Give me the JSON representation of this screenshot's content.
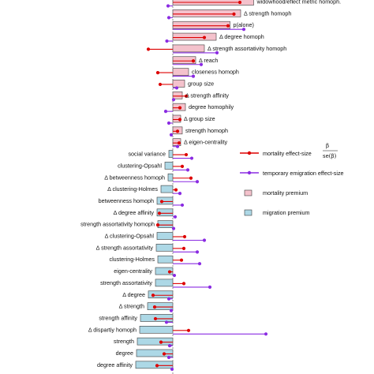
{
  "chart_data": {
    "type": "bar",
    "title": "",
    "xlabel": "",
    "ylabel": "",
    "xlim": [
      -0.1,
      0.26
    ],
    "grid": false,
    "legend_position": "right",
    "colors": {
      "mortality": "#dd0000",
      "emigration": "#8a2be2",
      "mortality_bar": "#f4c2cc",
      "migration_bar": "#add8e6",
      "bar_edge": "#3a3a3a",
      "zero_line": "#777777"
    },
    "legend": {
      "mortality_effect": "mortality effect-size",
      "beta": "β",
      "se_beta": "se(β)",
      "emigration_effect": "temporary emigration effect-size",
      "mortality_premium": "mortality premium",
      "migration_premium": "migration premium"
    },
    "rows": [
      {
        "label": "widowhood/eflect metric homoph.",
        "premium": 0.205,
        "mortality": 0.17,
        "emigration": -0.012
      },
      {
        "label": "Δ strength homoph",
        "premium": 0.172,
        "mortality": 0.155,
        "emigration": -0.01
      },
      {
        "label": "p(alone)",
        "premium": 0.145,
        "mortality": 0.14,
        "emigration": 0.18
      },
      {
        "label": "Δ degree homoph",
        "premium": 0.11,
        "mortality": 0.08,
        "emigration": -0.015
      },
      {
        "label": "Δ strength assortativity homoph",
        "premium": 0.08,
        "mortality": -0.062,
        "emigration": 0.112
      },
      {
        "label": "Δ reach",
        "premium": 0.058,
        "mortality": 0.052,
        "emigration": 0.072
      },
      {
        "label": "closeness homoph",
        "premium": 0.04,
        "mortality": -0.038,
        "emigration": 0.052
      },
      {
        "label": "group size",
        "premium": 0.03,
        "mortality": -0.032,
        "emigration": 0.01
      },
      {
        "label": "Δ strength affinity",
        "premium": 0.024,
        "mortality": 0.034,
        "emigration": 0.002
      },
      {
        "label": "degree homophily",
        "premium": 0.032,
        "mortality": 0.018,
        "emigration": -0.018
      },
      {
        "label": "Δ group size",
        "premium": 0.02,
        "mortality": 0.018,
        "emigration": -0.01
      },
      {
        "label": "strength homoph",
        "premium": 0.024,
        "mortality": 0.012,
        "emigration": -0.004
      },
      {
        "label": "Δ eigen-centrality",
        "premium": 0.02,
        "mortality": 0.016,
        "emigration": 0.012
      },
      {
        "label": "social variance",
        "premium": -0.01,
        "mortality": 0.034,
        "emigration": 0.048
      },
      {
        "label": "clustering-Opsahl",
        "premium": -0.02,
        "mortality": 0.024,
        "emigration": 0.038
      },
      {
        "label": "Δ betweenness homoph",
        "premium": -0.012,
        "mortality": 0.046,
        "emigration": 0.062
      },
      {
        "label": "Δ clustering-Holmes",
        "premium": -0.03,
        "mortality": 0.008,
        "emigration": 0.018
      },
      {
        "label": "betweenness homoph",
        "premium": -0.04,
        "mortality": -0.028,
        "emigration": 0.024
      },
      {
        "label": "Δ degree affinity",
        "premium": -0.04,
        "mortality": -0.034,
        "emigration": 0.006
      },
      {
        "label": "strength assortativity homoph",
        "premium": -0.038,
        "mortality": -0.038,
        "emigration": 0.002
      },
      {
        "label": "Δ clustering-Opsahl",
        "premium": -0.04,
        "mortality": 0.03,
        "emigration": 0.08
      },
      {
        "label": "Δ strength assortativity",
        "premium": -0.042,
        "mortality": 0.028,
        "emigration": 0.062
      },
      {
        "label": "clustering-Holmes",
        "premium": -0.038,
        "mortality": 0.022,
        "emigration": 0.068
      },
      {
        "label": "eigen-centrality",
        "premium": -0.044,
        "mortality": -0.008,
        "emigration": 0.004
      },
      {
        "label": "strength assortativity",
        "premium": -0.044,
        "mortality": 0.028,
        "emigration": 0.094
      },
      {
        "label": "Δ degree",
        "premium": -0.062,
        "mortality": -0.05,
        "emigration": -0.01
      },
      {
        "label": "Δ strength",
        "premium": -0.064,
        "mortality": -0.046,
        "emigration": -0.004
      },
      {
        "label": "strength affinity",
        "premium": -0.082,
        "mortality": -0.044,
        "emigration": -0.016
      },
      {
        "label": "Δ dispartiy homoph",
        "premium": -0.084,
        "mortality": 0.04,
        "emigration": 0.236
      },
      {
        "label": "strength",
        "premium": -0.09,
        "mortality": -0.03,
        "emigration": -0.008
      },
      {
        "label": "degree",
        "premium": -0.092,
        "mortality": -0.022,
        "emigration": -0.01
      },
      {
        "label": "degree affinity",
        "premium": -0.094,
        "mortality": -0.04,
        "emigration": -0.002
      }
    ]
  }
}
